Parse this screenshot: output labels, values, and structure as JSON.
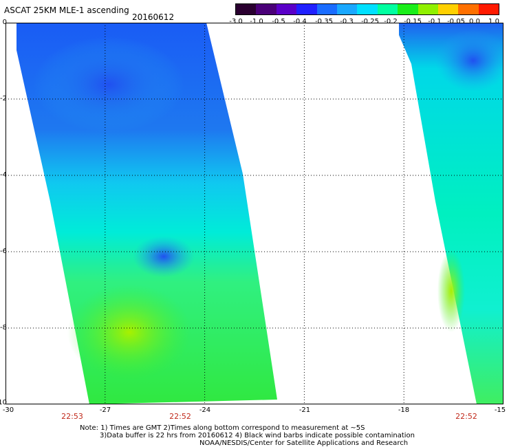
{
  "header": {
    "title": "ASCAT 25KM MLE-1 ascending",
    "date": "20160612"
  },
  "colorbar": {
    "labels": [
      "-3.0",
      "-1.0",
      "-0.5",
      "-0.4",
      "-0.35",
      "-0.3",
      "-0.25",
      "-0.2",
      "-0.15",
      "-0.1",
      "-0.05",
      "0.0",
      "1.0"
    ],
    "colors": [
      "#2a0030",
      "#4a0078",
      "#5a00c8",
      "#2020ff",
      "#1a6cff",
      "#1aa8ff",
      "#00e0ff",
      "#00ffa0",
      "#1aee1a",
      "#90f000",
      "#ffd000",
      "#ff7000",
      "#ff1a00"
    ]
  },
  "axes": {
    "x_ticks": [
      "-30",
      "-27",
      "-24",
      "-21",
      "-18",
      "-15"
    ],
    "y_ticks": [
      "0",
      "-2",
      "-4",
      "-6",
      "-8",
      "-10"
    ],
    "xlim": [
      -30,
      -15
    ],
    "ylim": [
      -10,
      0
    ]
  },
  "times": [
    "22:53",
    "22:52",
    "22:52"
  ],
  "notes": [
    "Note: 1) Times are GMT 2)Times along bottom correspond to measurement at ~5S",
    "3)Data buffer is 22 hrs from 20160612 4) Black wind barbs indicate possible contamination",
    "NOAA/NESDIS/Center for Satellite Applications and Research"
  ]
}
